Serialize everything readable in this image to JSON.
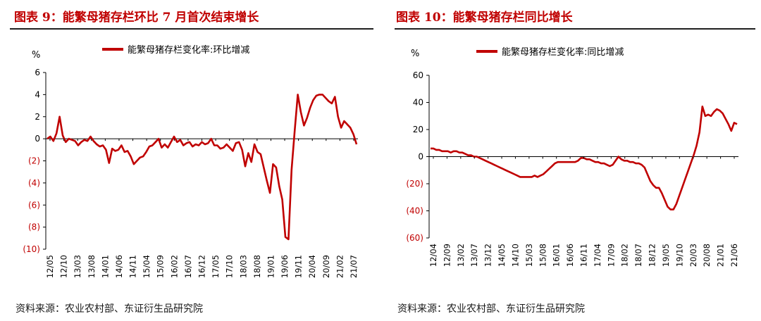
{
  "left": {
    "title": "图表 9：能繁母猪存栏环比 7 月首次结束增长",
    "source": "资料来源：农业农村部、东证衍生品研究院"
  },
  "right": {
    "title": "图表 10：能繁母猪存栏同比增长",
    "source": "资料来源：农业农村部、东证衍生品研究院"
  },
  "colors": {
    "series": "#c00000",
    "negative_tick": "#c00000",
    "axis": "#000000",
    "title": "#c00000"
  },
  "chart_data": [
    {
      "type": "line",
      "unit_label": "%",
      "legend": "能繁母猪存栏变化率:环比增减",
      "legend_placement": "top-center",
      "grid": false,
      "ylim": [
        -10,
        6
      ],
      "yticks": [
        6,
        4,
        2,
        0,
        -2,
        -4,
        -6,
        -8,
        -10
      ],
      "ytick_labels": [
        "6",
        "4",
        "2",
        "0",
        "(2)",
        "(4)",
        "(6)",
        "(8)",
        "(10)"
      ],
      "xtick_labels": [
        "12/05",
        "12/10",
        "13/03",
        "13/08",
        "14/01",
        "14/06",
        "14/11",
        "15/04",
        "15/09",
        "16/02",
        "16/07",
        "16/12",
        "17/05",
        "17/10",
        "18/03",
        "18/08",
        "19/01",
        "19/06",
        "19/11",
        "20/04",
        "20/09",
        "21/02",
        "21/07"
      ],
      "x_start": "2012-05",
      "series": [
        {
          "values": [
            0,
            0.2,
            -0.2,
            0.5,
            2.0,
            0.3,
            -0.3,
            0,
            -0.1,
            -0.2,
            -0.6,
            -0.3,
            -0.1,
            -0.2,
            0.2,
            -0.2,
            -0.5,
            -0.7,
            -0.6,
            -1.0,
            -2.2,
            -0.9,
            -1.1,
            -1.0,
            -0.6,
            -1.2,
            -1.1,
            -1.6,
            -2.3,
            -2.0,
            -1.7,
            -1.6,
            -1.2,
            -0.7,
            -0.6,
            -0.3,
            0,
            -0.8,
            -0.5,
            -0.8,
            -0.3,
            0.2,
            -0.3,
            -0.1,
            -0.6,
            -0.4,
            -0.3,
            -0.7,
            -0.5,
            -0.6,
            -0.3,
            -0.5,
            -0.4,
            0,
            -0.6,
            -0.6,
            -0.9,
            -0.8,
            -0.5,
            -0.8,
            -1.1,
            -0.4,
            -0.3,
            -1.0,
            -2.5,
            -1.3,
            -2.1,
            -0.5,
            -1.2,
            -1.4,
            -2.6,
            -3.8,
            -4.9,
            -2.3,
            -2.6,
            -4.3,
            -5.5,
            -8.9,
            -9.1,
            -2.8,
            0.7,
            4.0,
            2.4,
            1.2,
            1.9,
            2.8,
            3.5,
            3.9,
            4.0,
            4.0,
            3.7,
            3.4,
            3.2,
            3.8,
            2.0,
            1.0,
            1.6,
            1.3,
            1.0,
            0.4,
            -0.5
          ]
        }
      ]
    },
    {
      "type": "line",
      "unit_label": "%",
      "legend": "能繁母猪存栏变化率:同比增减",
      "legend_placement": "top-center",
      "grid": false,
      "ylim": [
        -60,
        60
      ],
      "yticks": [
        60,
        40,
        20,
        0,
        -20,
        -40,
        -60
      ],
      "ytick_labels": [
        "60",
        "40",
        "20",
        "0",
        "(20)",
        "(40)",
        "(60)"
      ],
      "xtick_labels": [
        "12/04",
        "12/09",
        "13/02",
        "13/07",
        "13/12",
        "14/05",
        "14/10",
        "15/03",
        "15/08",
        "16/01",
        "16/06",
        "16/11",
        "17/04",
        "17/09",
        "18/02",
        "18/07",
        "18/12",
        "19/05",
        "19/10",
        "20/03",
        "20/08",
        "21/01",
        "21/06"
      ],
      "x_start": "2012-04",
      "series": [
        {
          "values": [
            6,
            6,
            5,
            5,
            4,
            4,
            4,
            3,
            4,
            4,
            3,
            3,
            2,
            1,
            1,
            0,
            0,
            -1,
            -2,
            -3,
            -4,
            -5,
            -6,
            -7,
            -8,
            -9,
            -10,
            -11,
            -12,
            -13,
            -14,
            -15,
            -15,
            -15,
            -15,
            -15,
            -14,
            -15,
            -14,
            -13,
            -11,
            -9,
            -7,
            -5,
            -4,
            -4,
            -4,
            -4,
            -4,
            -4,
            -4,
            -3,
            -1,
            -1,
            -2,
            -2,
            -3,
            -4,
            -4,
            -5,
            -5,
            -6,
            -7,
            -6,
            -3,
            0,
            -2,
            -3,
            -3,
            -4,
            -4,
            -5,
            -5,
            -6,
            -8,
            -13,
            -18,
            -21,
            -23,
            -23,
            -27,
            -32,
            -37,
            -39,
            -39,
            -35,
            -29,
            -23,
            -17,
            -11,
            -5,
            1,
            8,
            18,
            37,
            30,
            31,
            30,
            33,
            35,
            34,
            32,
            28,
            24,
            19,
            25,
            24
          ]
        }
      ]
    }
  ]
}
